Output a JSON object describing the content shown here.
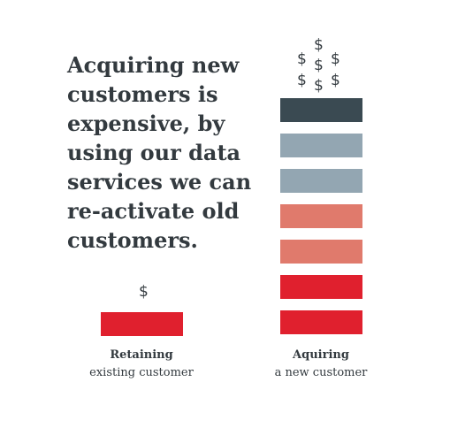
{
  "headline": "Acquiring new\ncustomers is\nexpensive, by\nusing our data\nservices we can\nre-activate old\ncustomers.",
  "retaining": {
    "title": "Retaining",
    "subtitle": "existing customer",
    "dollars": [
      "$"
    ],
    "blocks": 1,
    "color": "#e0202e"
  },
  "acquiring": {
    "title": "Aquiring",
    "subtitle": "a new customer",
    "dollars": [
      "$",
      "$",
      "$",
      "$",
      "$",
      "$",
      "$"
    ],
    "blocks": 7,
    "colors": [
      "#3a4a52",
      "#93a6b2",
      "#93a6b2",
      "#e07a6c",
      "#e07a6c",
      "#e0202e",
      "#e0202e"
    ]
  },
  "colors": {
    "text": "#333a3f",
    "dark_slate": "#3a4a52",
    "blue_gray": "#93a6b2",
    "salmon": "#e07a6c",
    "red": "#e0202e"
  }
}
